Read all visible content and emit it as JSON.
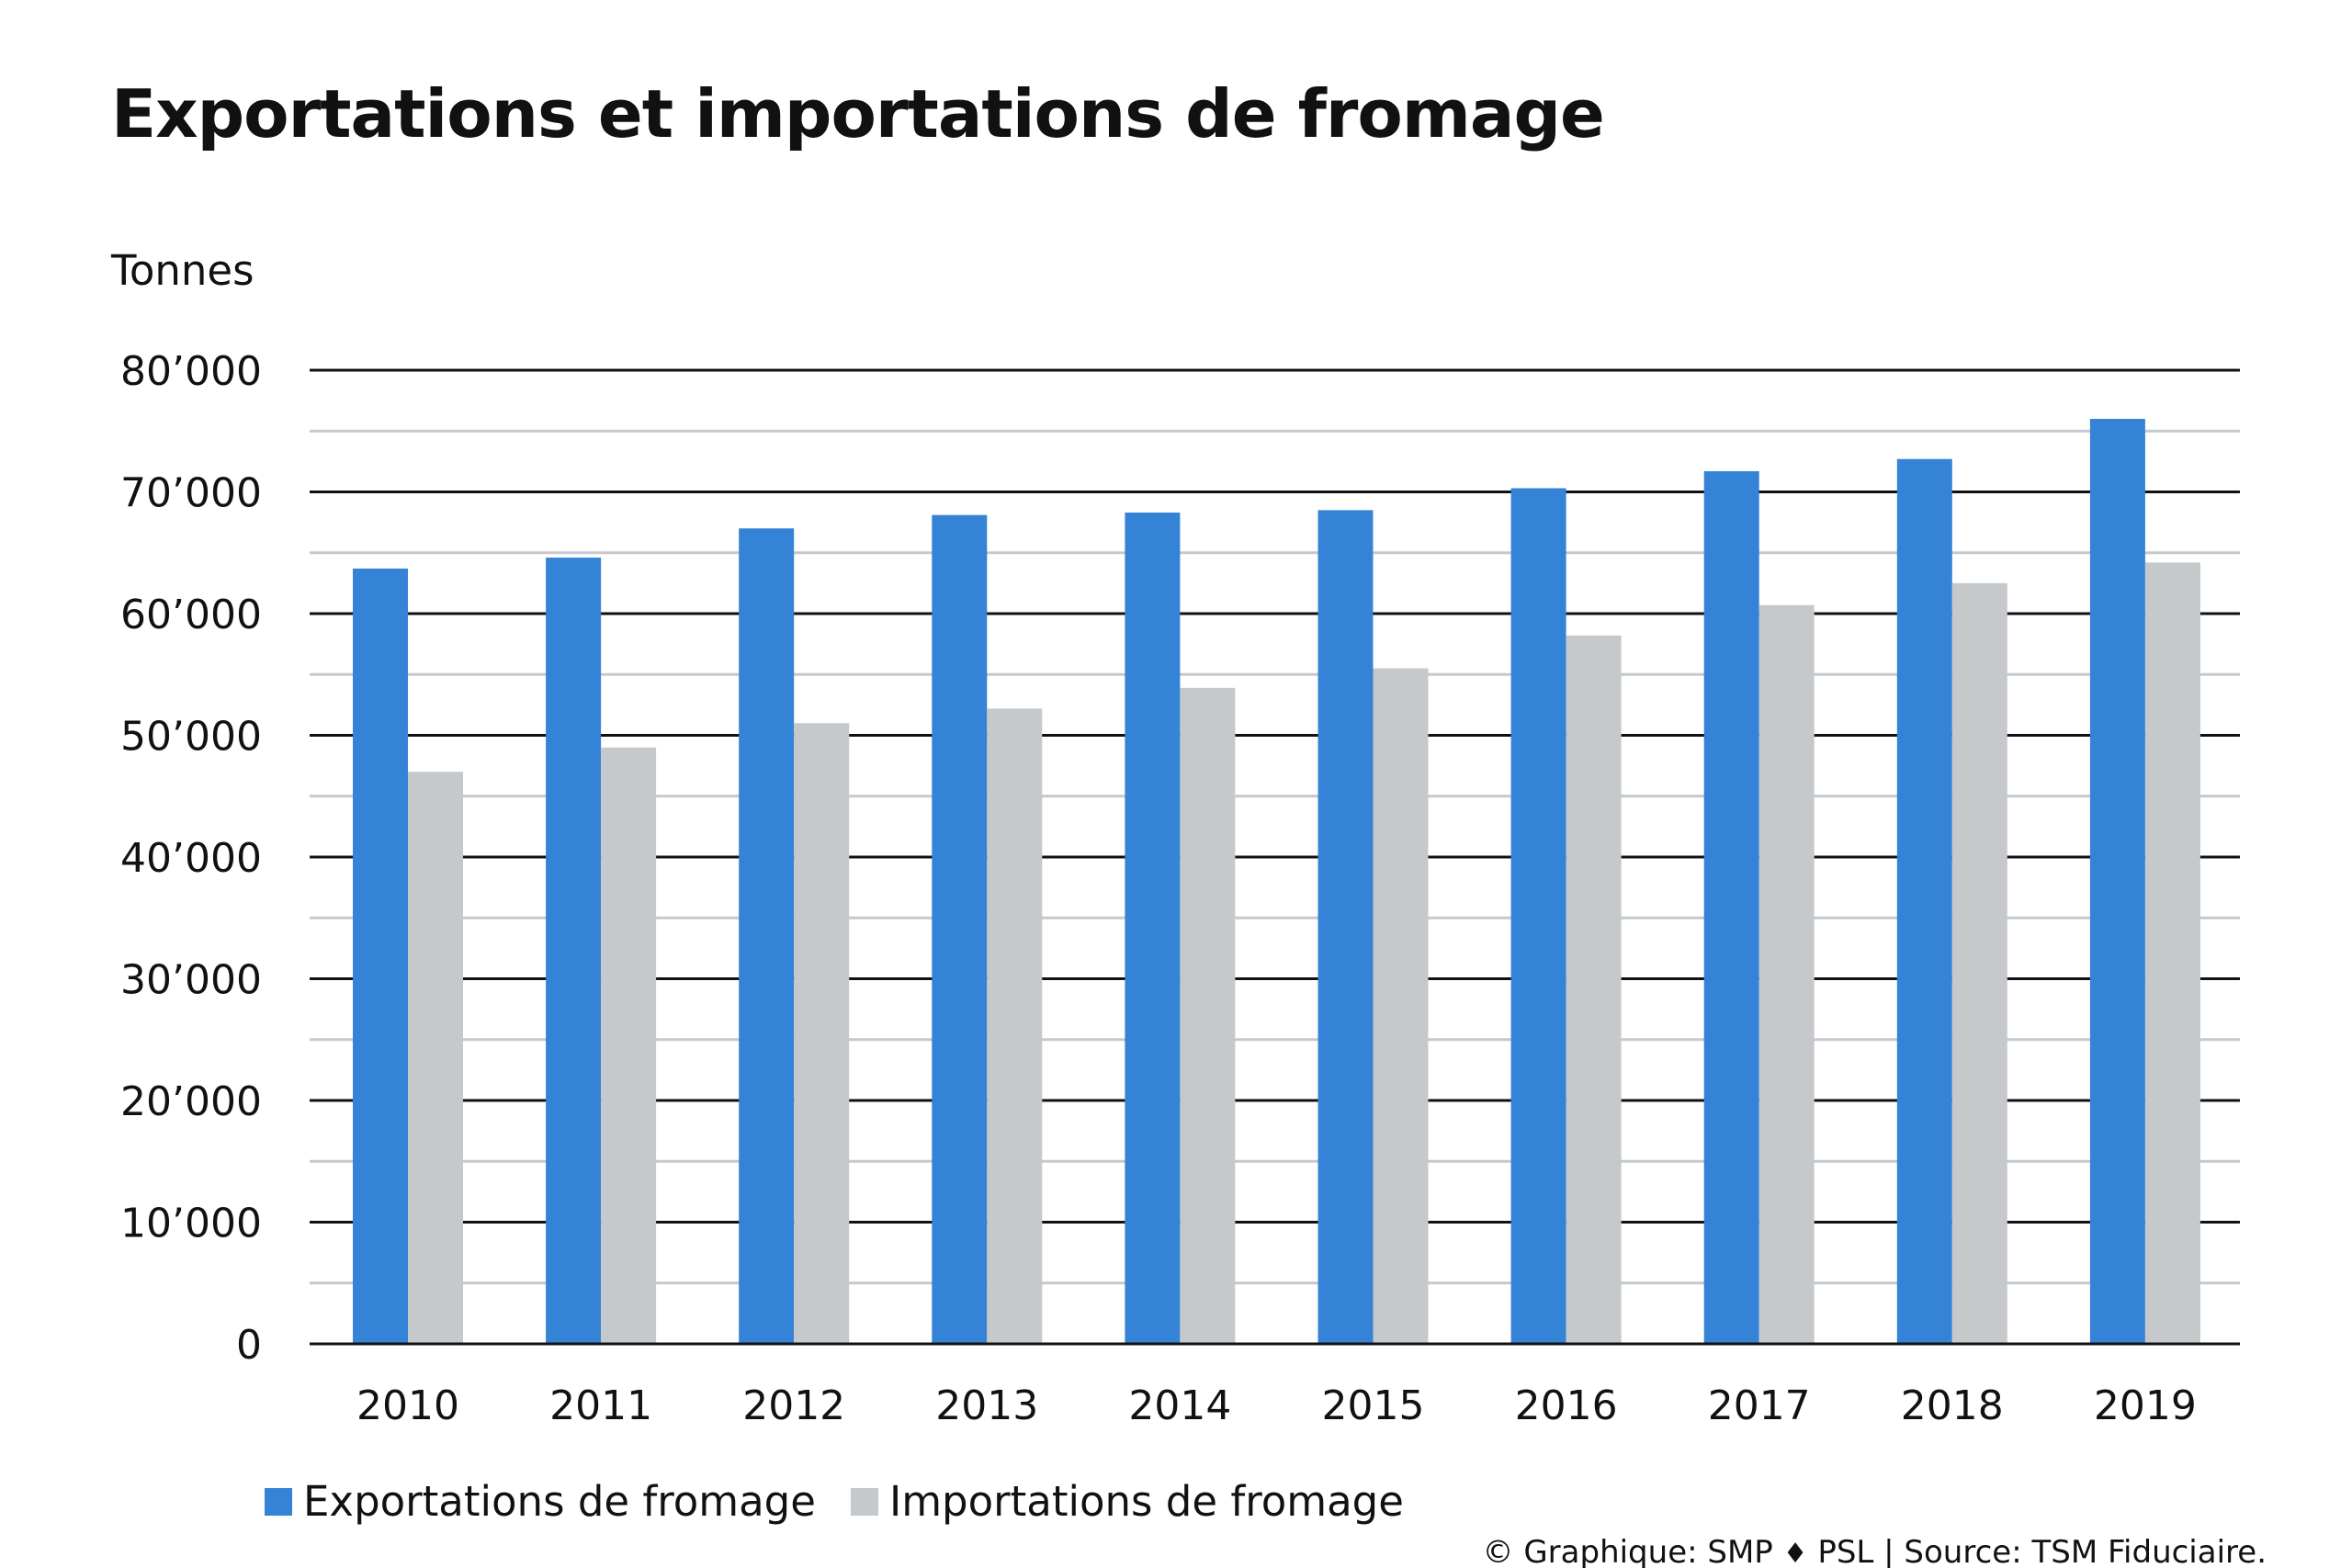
{
  "chart_data": {
    "type": "bar",
    "title": "Exportations et importations de fromage",
    "ylabel": "Tonnes",
    "xlabel": "",
    "ylim": [
      0,
      80000
    ],
    "yticks": [
      0,
      10000,
      20000,
      30000,
      40000,
      50000,
      60000,
      70000,
      80000
    ],
    "ytick_labels": [
      "0",
      "10’000",
      "20’000",
      "30’000",
      "40’000",
      "50’000",
      "60’000",
      "70’000",
      "80’000"
    ],
    "grid": "horizontal, major black lines every 10’000 and light gray lines every 5’000",
    "legend_position": "bottom-left",
    "categories": [
      "2010",
      "2011",
      "2012",
      "2013",
      "2014",
      "2015",
      "2016",
      "2017",
      "2018",
      "2019"
    ],
    "series": [
      {
        "name": "Exportations de fromage",
        "color": "#3583d6",
        "values": [
          63700,
          64600,
          67000,
          68100,
          68300,
          68500,
          70300,
          71700,
          72700,
          76000
        ]
      },
      {
        "name": "Importations de fromage",
        "color": "#c5c9cc",
        "values": [
          47000,
          49000,
          51000,
          52200,
          53900,
          55500,
          58200,
          60700,
          62500,
          64200
        ]
      }
    ]
  },
  "credit": {
    "prefix": "© Graphique: SMP",
    "diamond": "♦",
    "suffix": "PSL | Source: TSM Fiduciaire."
  },
  "colors": {
    "major_grid": "#111111",
    "minor_grid": "#c5c9cc"
  }
}
